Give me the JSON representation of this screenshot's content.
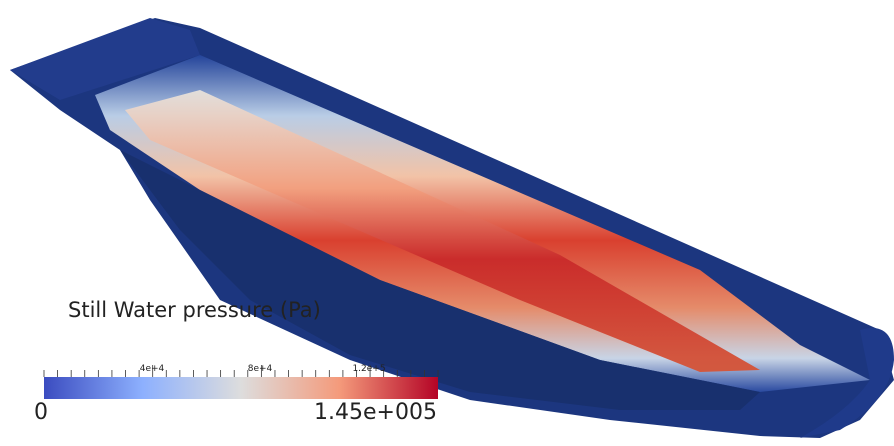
{
  "scene": {
    "background": "#ffffff",
    "surface_colors": {
      "low": "#1f3a8a",
      "dark": "#15266b",
      "mid": "#e3e0dc",
      "high": "#c8242c"
    }
  },
  "legend": {
    "title": "Still Water pressure (Pa)",
    "min_label": "0",
    "max_label": "1.45e+005",
    "tick_labels": [
      "4e+4",
      "8e+4",
      "1.2e+5"
    ],
    "tick_values": [
      40000,
      80000,
      120000
    ],
    "range": [
      0,
      145000
    ],
    "colormap": [
      "#3b4cc0",
      "#8db0fe",
      "#dddddd",
      "#f49a7b",
      "#b40426"
    ]
  }
}
